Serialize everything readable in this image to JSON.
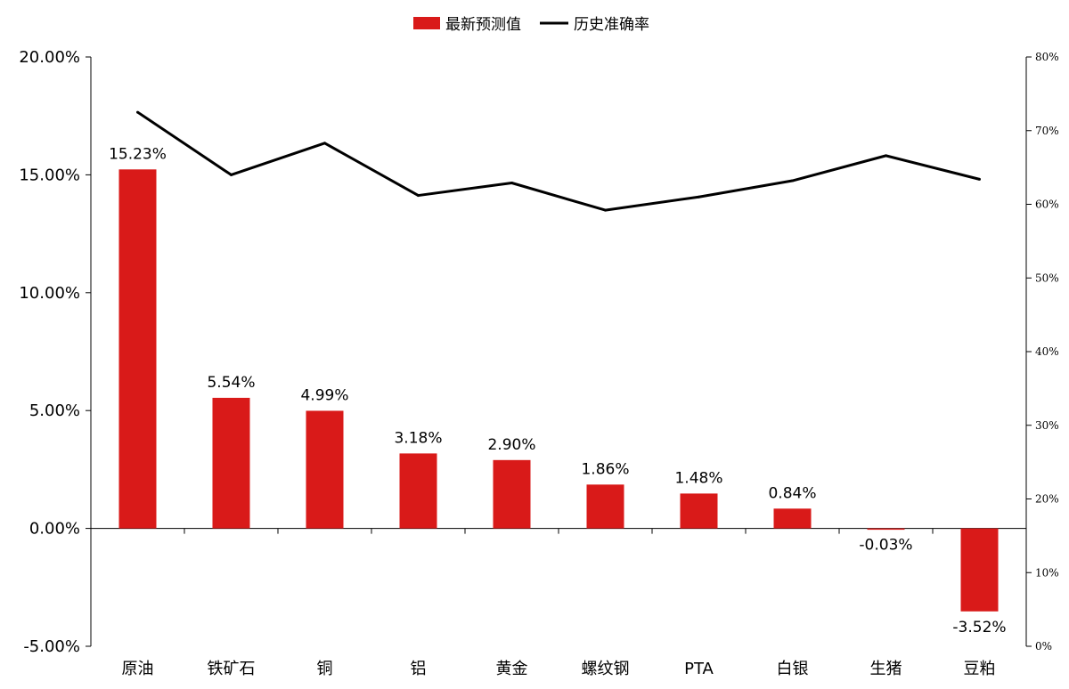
{
  "chart_data": {
    "type": "bar",
    "categories": [
      "原油",
      "铁矿石",
      "铜",
      "铝",
      "黄金",
      "螺纹钢",
      "PTA",
      "白银",
      "生猪",
      "豆粕"
    ],
    "series": [
      {
        "name": "最新预测值",
        "type": "bar",
        "axis": "left",
        "color": "#d91a19",
        "values": [
          15.23,
          5.54,
          4.99,
          3.18,
          2.9,
          1.86,
          1.48,
          0.84,
          -0.03,
          -3.52
        ],
        "labels": [
          "15.23%",
          "5.54%",
          "4.99%",
          "3.18%",
          "2.90%",
          "1.86%",
          "1.48%",
          "0.84%",
          "-0.03%",
          "-3.52%"
        ]
      },
      {
        "name": "历史准确率",
        "type": "line",
        "axis": "right",
        "color": "#000000",
        "values": [
          72.5,
          64,
          68.3,
          61.2,
          62.9,
          59.2,
          61,
          63.2,
          66.6,
          63.4
        ]
      }
    ],
    "y_left": {
      "lim": [
        -5,
        20
      ],
      "ticks": [
        20,
        15,
        10,
        5,
        0,
        -5
      ],
      "tick_labels": [
        "20.00%",
        "15.00%",
        "10.00%",
        "5.00%",
        "0.00%",
        "-5.00%"
      ]
    },
    "y_right": {
      "lim": [
        0,
        80
      ],
      "ticks": [
        80,
        70,
        60,
        50,
        40,
        30,
        20,
        10,
        0
      ],
      "tick_labels": [
        "80%",
        "70%",
        "60%",
        "50%",
        "40%",
        "30%",
        "20%",
        "10%",
        "0%"
      ]
    },
    "legend_position": "top-center",
    "grid": false
  }
}
